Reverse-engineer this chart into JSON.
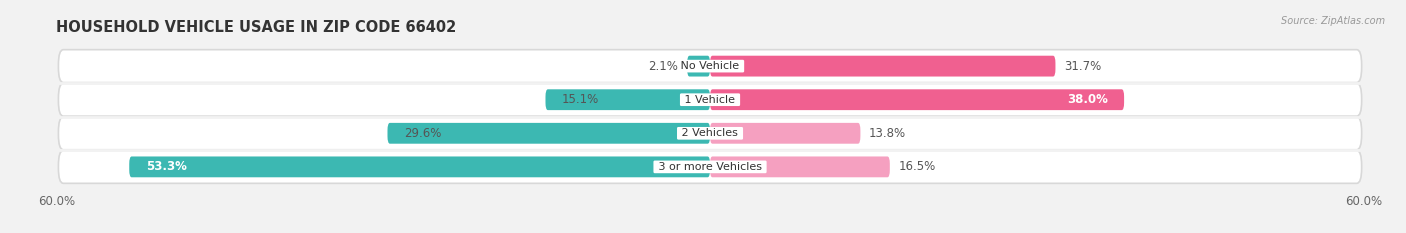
{
  "title": "HOUSEHOLD VEHICLE USAGE IN ZIP CODE 66402",
  "source": "Source: ZipAtlas.com",
  "categories": [
    "No Vehicle",
    "1 Vehicle",
    "2 Vehicles",
    "3 or more Vehicles"
  ],
  "owner_values": [
    2.1,
    15.1,
    29.6,
    53.3
  ],
  "renter_values": [
    31.7,
    38.0,
    13.8,
    16.5
  ],
  "owner_color": "#3cb8b2",
  "renter_colors": [
    "#f06090",
    "#f06090",
    "#f5a0c0",
    "#f5a0c0"
  ],
  "axis_max": 60.0,
  "axis_label_left": "60.0%",
  "axis_label_right": "60.0%",
  "background_color": "#f2f2f2",
  "row_bg_color": "#ffffff",
  "row_border_color": "#dddddd",
  "title_fontsize": 10.5,
  "source_fontsize": 7.0,
  "label_fontsize": 8.5,
  "category_fontsize": 8.0,
  "legend_fontsize": 8.5,
  "owner_label_colors": [
    "#555555",
    "#555555",
    "#555555",
    "#ffffff"
  ],
  "renter_label_colors": [
    "#555555",
    "#ffffff",
    "#555555",
    "#555555"
  ]
}
